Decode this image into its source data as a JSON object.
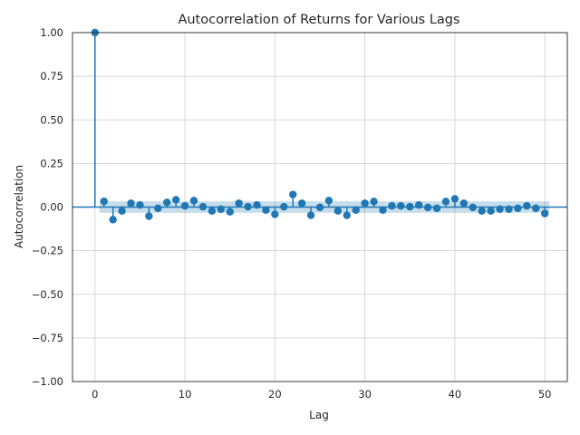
{
  "chart_data": {
    "type": "stem",
    "title": "Autocorrelation of Returns for Various Lags",
    "xlabel": "Lag",
    "ylabel": "Autocorrelation",
    "xlim": [
      -2.5,
      52.5
    ],
    "ylim": [
      -1.0,
      1.0
    ],
    "xticks": [
      0,
      10,
      20,
      30,
      40,
      50
    ],
    "yticks": [
      -1.0,
      -0.75,
      -0.5,
      -0.25,
      0.0,
      0.25,
      0.5,
      0.75,
      1.0
    ],
    "xtick_labels": [
      "0",
      "10",
      "20",
      "30",
      "40",
      "50"
    ],
    "ytick_labels": [
      "−1.00",
      "−0.75",
      "−0.50",
      "−0.25",
      "0.00",
      "0.25",
      "0.50",
      "0.75",
      "1.00"
    ],
    "grid": true,
    "color": "#1f77b4",
    "confidence_band": {
      "lag_start": 0.5,
      "lag_end": 50.5,
      "half_width": 0.033
    },
    "lags": [
      0,
      1,
      2,
      3,
      4,
      5,
      6,
      7,
      8,
      9,
      10,
      11,
      12,
      13,
      14,
      15,
      16,
      17,
      18,
      19,
      20,
      21,
      22,
      23,
      24,
      25,
      26,
      27,
      28,
      29,
      30,
      31,
      32,
      33,
      34,
      35,
      36,
      37,
      38,
      39,
      40,
      41,
      42,
      43,
      44,
      45,
      46,
      47,
      48,
      49,
      50
    ],
    "values": [
      1.0,
      0.033,
      -0.072,
      -0.022,
      0.022,
      0.012,
      -0.052,
      -0.007,
      0.027,
      0.042,
      0.007,
      0.037,
      0.002,
      -0.022,
      -0.012,
      -0.027,
      0.022,
      0.002,
      0.012,
      -0.017,
      -0.042,
      0.002,
      0.072,
      0.022,
      -0.047,
      -0.002,
      0.037,
      -0.022,
      -0.047,
      -0.017,
      0.022,
      0.032,
      -0.017,
      0.007,
      0.007,
      0.002,
      0.012,
      -0.002,
      -0.007,
      0.032,
      0.047,
      0.022,
      -0.002,
      -0.022,
      -0.022,
      -0.012,
      -0.012,
      -0.007,
      0.007,
      -0.007,
      -0.037
    ]
  }
}
